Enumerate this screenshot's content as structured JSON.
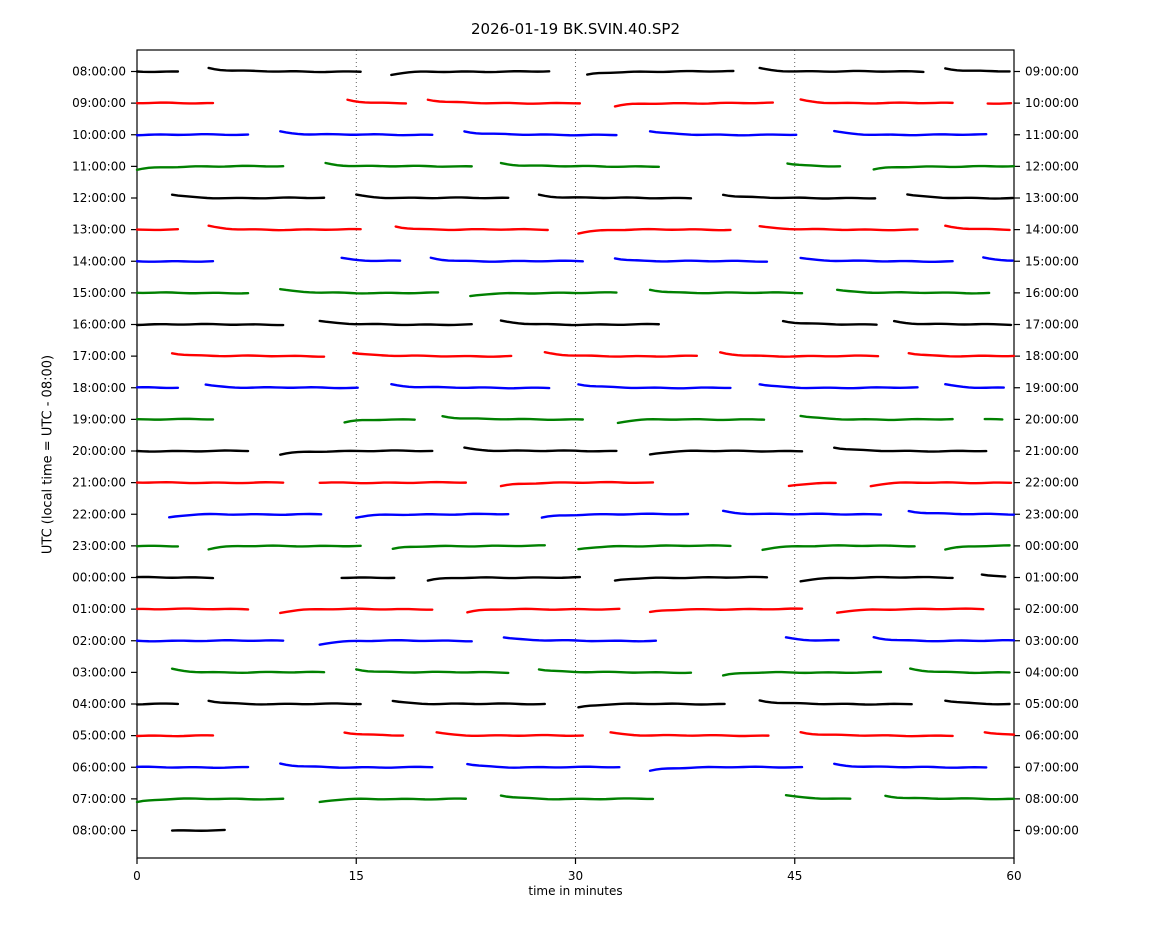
{
  "chart_data": {
    "type": "line",
    "subtype": "helicorder-dayplot",
    "title": "2026-01-19 BK.SVIN.40.SP2",
    "xlabel": "time in minutes",
    "ylabel": "UTC (local time = UTC - 08:00)",
    "xlim": [
      0,
      60
    ],
    "x_ticks": [
      0,
      15,
      30,
      45,
      60
    ],
    "grid": {
      "vertical_minutes": [
        15,
        30,
        45
      ],
      "style": "dotted"
    },
    "legend": "none",
    "color_cycle": [
      "#000000",
      "#ff0000",
      "#0000ff",
      "#008000"
    ],
    "segment_format": "[start_minute, end_minute, onset_transient(1=starts above,-1=starts below,0=flat)]",
    "rows": [
      {
        "label_left": "08:00:00",
        "label_right": "09:00:00",
        "color": "#000000",
        "segments": [
          [
            0,
            2.8,
            0
          ],
          [
            4.9,
            15.4,
            1
          ],
          [
            17.4,
            28.2,
            -1
          ],
          [
            30.8,
            40.9,
            -1
          ],
          [
            42.6,
            53.9,
            1
          ],
          [
            55.3,
            60,
            1
          ]
        ]
      },
      {
        "label_left": "09:00:00",
        "label_right": "10:00:00",
        "color": "#ff0000",
        "segments": [
          [
            0,
            5.3,
            0
          ],
          [
            14.4,
            18.4,
            1
          ],
          [
            19.9,
            30.6,
            1
          ],
          [
            32.7,
            43.6,
            -1
          ],
          [
            45.4,
            55.9,
            1
          ],
          [
            58.2,
            60,
            0
          ]
        ]
      },
      {
        "label_left": "10:00:00",
        "label_right": "11:00:00",
        "color": "#0000ff",
        "segments": [
          [
            0,
            7.8,
            0
          ],
          [
            9.8,
            20.3,
            1
          ],
          [
            22.4,
            33.1,
            1
          ],
          [
            35.1,
            45.2,
            1
          ],
          [
            47.7,
            58.4,
            1
          ]
        ]
      },
      {
        "label_left": "11:00:00",
        "label_right": "12:00:00",
        "color": "#008000",
        "segments": [
          [
            0,
            10.3,
            -1
          ],
          [
            12.9,
            23,
            1
          ],
          [
            24.9,
            35.8,
            1
          ],
          [
            44.5,
            48.3,
            1
          ],
          [
            50.4,
            60,
            -1
          ]
        ]
      },
      {
        "label_left": "12:00:00",
        "label_right": "13:00:00",
        "color": "#000000",
        "segments": [
          [
            2.4,
            13.1,
            1
          ],
          [
            15,
            25.5,
            1
          ],
          [
            27.5,
            38,
            1
          ],
          [
            40.1,
            50.7,
            1
          ],
          [
            52.7,
            60,
            1
          ]
        ]
      },
      {
        "label_left": "13:00:00",
        "label_right": "14:00:00",
        "color": "#ff0000",
        "segments": [
          [
            0,
            3,
            0
          ],
          [
            4.9,
            15.4,
            1
          ],
          [
            17.7,
            28.2,
            1
          ],
          [
            30.2,
            40.9,
            -1
          ],
          [
            42.6,
            53.5,
            1
          ],
          [
            55.3,
            60,
            1
          ]
        ]
      },
      {
        "label_left": "14:00:00",
        "label_right": "15:00:00",
        "color": "#0000ff",
        "segments": [
          [
            0,
            5.3,
            0
          ],
          [
            14,
            18.1,
            1
          ],
          [
            20.1,
            30.6,
            1
          ],
          [
            32.7,
            43.4,
            1
          ],
          [
            45.4,
            55.8,
            1
          ],
          [
            57.9,
            60,
            1
          ]
        ]
      },
      {
        "label_left": "15:00:00",
        "label_right": "16:00:00",
        "color": "#008000",
        "segments": [
          [
            0,
            7.8,
            0
          ],
          [
            9.8,
            20.7,
            1
          ],
          [
            22.8,
            33.1,
            -1
          ],
          [
            35.1,
            45.8,
            1
          ],
          [
            47.9,
            58.5,
            1
          ]
        ]
      },
      {
        "label_left": "16:00:00",
        "label_right": "17:00:00",
        "color": "#000000",
        "segments": [
          [
            0,
            10.3,
            0
          ],
          [
            12.5,
            23,
            1
          ],
          [
            24.9,
            35.8,
            1
          ],
          [
            44.2,
            50.6,
            1
          ],
          [
            51.8,
            60,
            1
          ]
        ]
      },
      {
        "label_left": "17:00:00",
        "label_right": "18:00:00",
        "color": "#ff0000",
        "segments": [
          [
            2.4,
            13.1,
            1
          ],
          [
            14.8,
            25.7,
            1
          ],
          [
            27.9,
            38.4,
            1
          ],
          [
            39.9,
            50.8,
            1
          ],
          [
            52.8,
            60,
            1
          ]
        ]
      },
      {
        "label_left": "18:00:00",
        "label_right": "19:00:00",
        "color": "#0000ff",
        "segments": [
          [
            0,
            3,
            0
          ],
          [
            4.7,
            15.4,
            1
          ],
          [
            17.4,
            28.2,
            1
          ],
          [
            30.2,
            40.7,
            1
          ],
          [
            42.6,
            53.5,
            1
          ],
          [
            55.3,
            59.6,
            1
          ]
        ]
      },
      {
        "label_left": "19:00:00",
        "label_right": "20:00:00",
        "color": "#008000",
        "segments": [
          [
            0,
            5.3,
            0
          ],
          [
            14.2,
            19.1,
            -1
          ],
          [
            20.9,
            30.6,
            1
          ],
          [
            32.9,
            43.2,
            -1
          ],
          [
            45.4,
            56.1,
            1
          ],
          [
            58,
            59.2,
            0
          ]
        ]
      },
      {
        "label_left": "20:00:00",
        "label_right": "21:00:00",
        "color": "#000000",
        "segments": [
          [
            0,
            7.8,
            0
          ],
          [
            9.8,
            20.5,
            -1
          ],
          [
            22.4,
            33.1,
            1
          ],
          [
            35.1,
            45.8,
            -1
          ],
          [
            47.7,
            58.4,
            1
          ]
        ]
      },
      {
        "label_left": "21:00:00",
        "label_right": "22:00:00",
        "color": "#ff0000",
        "segments": [
          [
            0,
            10.3,
            0
          ],
          [
            12.5,
            22.8,
            0
          ],
          [
            24.9,
            35.6,
            -1
          ],
          [
            44.6,
            48.1,
            -1
          ],
          [
            50.2,
            60,
            -1
          ]
        ]
      },
      {
        "label_left": "22:00:00",
        "label_right": "23:00:00",
        "color": "#0000ff",
        "segments": [
          [
            2.2,
            12.9,
            -1
          ],
          [
            15,
            25.5,
            -1
          ],
          [
            27.7,
            38,
            -1
          ],
          [
            40.1,
            51,
            1
          ],
          [
            52.8,
            60,
            1
          ]
        ]
      },
      {
        "label_left": "23:00:00",
        "label_right": "00:00:00",
        "color": "#008000",
        "segments": [
          [
            0,
            3,
            0
          ],
          [
            4.9,
            15.4,
            -1
          ],
          [
            17.5,
            28.2,
            -1
          ],
          [
            30.2,
            40.7,
            -1
          ],
          [
            42.8,
            53.3,
            -1
          ],
          [
            55.3,
            60,
            -1
          ]
        ]
      },
      {
        "label_left": "00:00:00",
        "label_right": "01:00:00",
        "color": "#000000",
        "segments": [
          [
            0,
            5.3,
            0
          ],
          [
            14,
            17.9,
            0
          ],
          [
            19.9,
            30.6,
            -1
          ],
          [
            32.7,
            43.4,
            -1
          ],
          [
            45.4,
            56.1,
            -1
          ],
          [
            57.8,
            59.4,
            1
          ]
        ]
      },
      {
        "label_left": "01:00:00",
        "label_right": "02:00:00",
        "color": "#ff0000",
        "segments": [
          [
            0,
            7.8,
            0
          ],
          [
            9.8,
            20.5,
            -1
          ],
          [
            22.6,
            33.1,
            -1
          ],
          [
            35.1,
            45.6,
            -1
          ],
          [
            47.9,
            58.2,
            -1
          ]
        ]
      },
      {
        "label_left": "02:00:00",
        "label_right": "03:00:00",
        "color": "#0000ff",
        "segments": [
          [
            0,
            10.3,
            0
          ],
          [
            12.5,
            23,
            -1
          ],
          [
            25.1,
            35.8,
            1
          ],
          [
            44.4,
            48.3,
            1
          ],
          [
            50.4,
            60,
            1
          ]
        ]
      },
      {
        "label_left": "03:00:00",
        "label_right": "04:00:00",
        "color": "#008000",
        "segments": [
          [
            2.4,
            12.9,
            1
          ],
          [
            15,
            25.5,
            1
          ],
          [
            27.5,
            38,
            1
          ],
          [
            40.1,
            51,
            -1
          ],
          [
            52.9,
            60,
            1
          ]
        ]
      },
      {
        "label_left": "04:00:00",
        "label_right": "05:00:00",
        "color": "#000000",
        "segments": [
          [
            0,
            2.8,
            0
          ],
          [
            4.9,
            15.4,
            1
          ],
          [
            17.5,
            27.9,
            1
          ],
          [
            30.2,
            40.5,
            -1
          ],
          [
            42.6,
            53.3,
            1
          ],
          [
            55.3,
            60,
            1
          ]
        ]
      },
      {
        "label_left": "05:00:00",
        "label_right": "06:00:00",
        "color": "#ff0000",
        "segments": [
          [
            0,
            5.3,
            0
          ],
          [
            14.2,
            18.4,
            1
          ],
          [
            20.5,
            30.6,
            1
          ],
          [
            32.4,
            43.3,
            1
          ],
          [
            45.4,
            55.9,
            1
          ],
          [
            58,
            60,
            1
          ]
        ]
      },
      {
        "label_left": "06:00:00",
        "label_right": "07:00:00",
        "color": "#0000ff",
        "segments": [
          [
            0,
            7.8,
            0
          ],
          [
            9.8,
            20.5,
            1
          ],
          [
            22.6,
            33.1,
            1
          ],
          [
            35.1,
            45.6,
            -1
          ],
          [
            47.7,
            58.2,
            1
          ]
        ]
      },
      {
        "label_left": "07:00:00",
        "label_right": "08:00:00",
        "color": "#008000",
        "segments": [
          [
            0,
            10.3,
            -1
          ],
          [
            12.5,
            22.8,
            -1
          ],
          [
            24.9,
            35.6,
            1
          ],
          [
            44.4,
            49.1,
            1
          ],
          [
            51.2,
            60,
            1
          ]
        ]
      },
      {
        "label_left": "08:00:00",
        "label_right": "09:00:00",
        "color": "#000000",
        "segments": [
          [
            2.4,
            6.3,
            0
          ]
        ]
      }
    ]
  }
}
